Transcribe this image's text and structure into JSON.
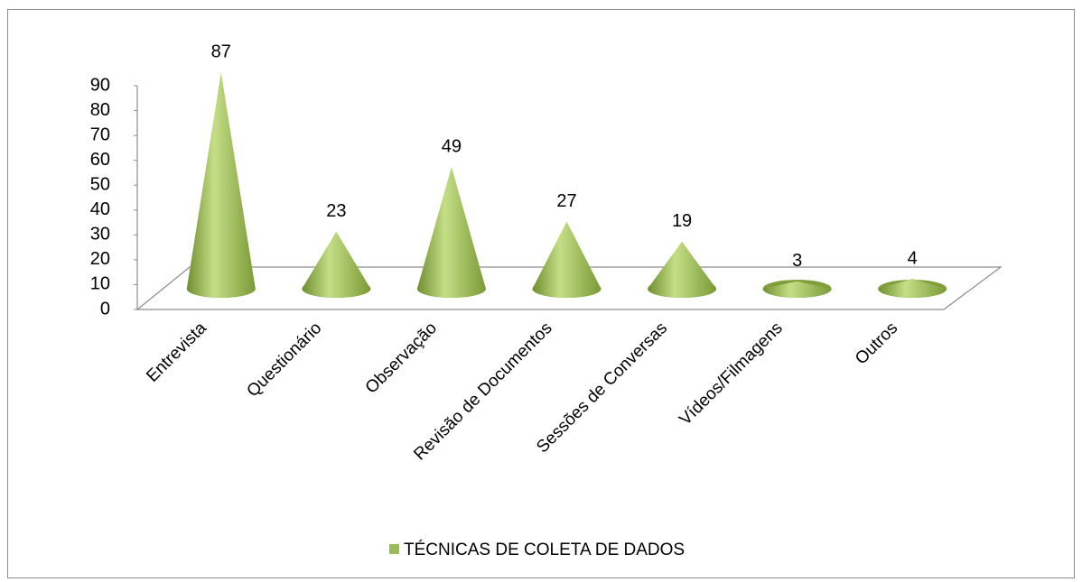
{
  "chart_data": {
    "type": "cone",
    "categories": [
      "Entrevista",
      "Questionário",
      "Observação",
      "Revisão de Documentos",
      "Sessões de Conversas",
      "Vídeos/Filmagens",
      "Outros"
    ],
    "series": [
      {
        "name": "TÉCNICAS DE COLETA DE DADOS",
        "color": "#9bbb59",
        "values": [
          87,
          23,
          49,
          27,
          19,
          3,
          4
        ]
      }
    ],
    "ylim": [
      0,
      90
    ],
    "yticks": [
      0,
      10,
      20,
      30,
      40,
      50,
      60,
      70,
      80,
      90
    ],
    "legend": "bottom"
  }
}
